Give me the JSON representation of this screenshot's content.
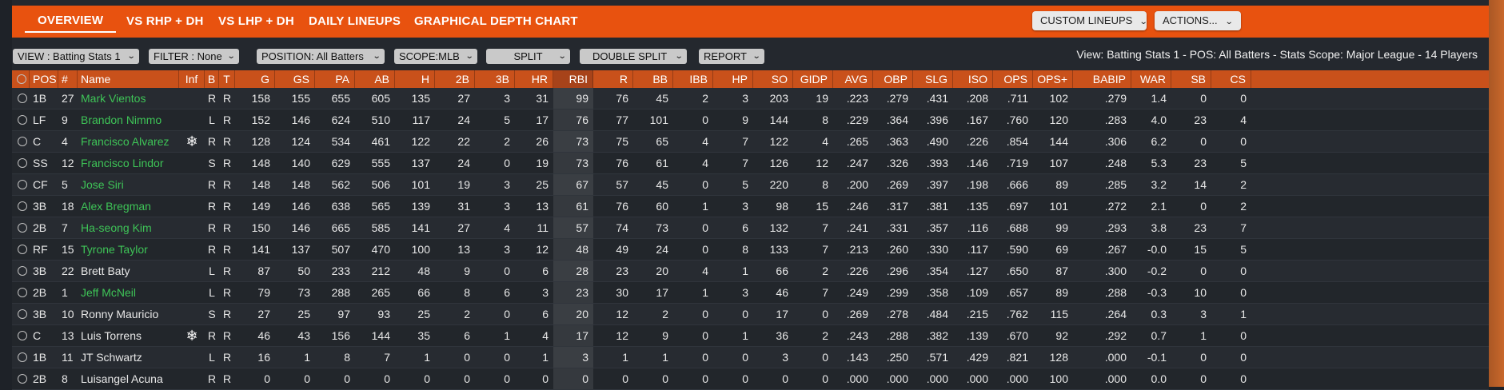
{
  "tabs": [
    {
      "label": "OVERVIEW",
      "active": true
    },
    {
      "label": "VS RHP + DH",
      "active": false
    },
    {
      "label": "VS LHP + DH",
      "active": false
    },
    {
      "label": "DAILY LINEUPS",
      "active": false
    },
    {
      "label": "GRAPHICAL DEPTH CHART",
      "active": false
    }
  ],
  "top_buttons": {
    "custom_lineups": "CUSTOM LINEUPS",
    "actions": "ACTIONS..."
  },
  "filters": {
    "view": "VIEW : Batting Stats 1",
    "filter": "FILTER : None",
    "position": "POSITION: All Batters",
    "scope": "SCOPE:MLB",
    "split": "SPLIT",
    "double_split": "DOUBLE SPLIT",
    "report": "REPORT"
  },
  "summary": "View: Batting Stats 1 - POS: All Batters - Stats Scope: Major League - 14 Players",
  "columns": [
    "POS",
    "#",
    "Name",
    "Inf",
    "B",
    "T",
    "G",
    "GS",
    "PA",
    "AB",
    "H",
    "2B",
    "3B",
    "HR",
    "RBI",
    "R",
    "BB",
    "IBB",
    "HP",
    "SO",
    "GIDP",
    "AVG",
    "OBP",
    "SLG",
    "ISO",
    "OPS",
    "OPS+",
    "BABIP",
    "WAR",
    "SB",
    "CS"
  ],
  "colors": {
    "accent": "#e8520f",
    "header": "#c9511b",
    "green_name": "#3ec457"
  },
  "rows": [
    {
      "pos": "1B",
      "num": "27",
      "name": "Mark Vientos",
      "green": true,
      "inf": "",
      "b": "R",
      "t": "R",
      "stats": [
        "158",
        "155",
        "655",
        "605",
        "135",
        "27",
        "3",
        "31",
        "99",
        "76",
        "45",
        "2",
        "3",
        "203",
        "19",
        ".223",
        ".279",
        ".431",
        ".208",
        ".711",
        "102",
        ".279",
        "1.4",
        "0",
        "0"
      ]
    },
    {
      "pos": "LF",
      "num": "9",
      "name": "Brandon Nimmo",
      "green": true,
      "inf": "",
      "b": "L",
      "t": "R",
      "stats": [
        "152",
        "146",
        "624",
        "510",
        "117",
        "24",
        "5",
        "17",
        "76",
        "77",
        "101",
        "0",
        "9",
        "144",
        "8",
        ".229",
        ".364",
        ".396",
        ".167",
        ".760",
        "120",
        ".283",
        "4.0",
        "23",
        "4"
      ]
    },
    {
      "pos": "C",
      "num": "4",
      "name": "Francisco Alvarez",
      "green": true,
      "inf": "snowflake",
      "b": "R",
      "t": "R",
      "stats": [
        "128",
        "124",
        "534",
        "461",
        "122",
        "22",
        "2",
        "26",
        "73",
        "75",
        "65",
        "4",
        "7",
        "122",
        "4",
        ".265",
        ".363",
        ".490",
        ".226",
        ".854",
        "144",
        ".306",
        "6.2",
        "0",
        "0"
      ]
    },
    {
      "pos": "SS",
      "num": "12",
      "name": "Francisco Lindor",
      "green": true,
      "inf": "",
      "b": "S",
      "t": "R",
      "stats": [
        "148",
        "140",
        "629",
        "555",
        "137",
        "24",
        "0",
        "19",
        "73",
        "76",
        "61",
        "4",
        "7",
        "126",
        "12",
        ".247",
        ".326",
        ".393",
        ".146",
        ".719",
        "107",
        ".248",
        "5.3",
        "23",
        "5"
      ]
    },
    {
      "pos": "CF",
      "num": "5",
      "name": "Jose Siri",
      "green": true,
      "inf": "",
      "b": "R",
      "t": "R",
      "stats": [
        "148",
        "148",
        "562",
        "506",
        "101",
        "19",
        "3",
        "25",
        "67",
        "57",
        "45",
        "0",
        "5",
        "220",
        "8",
        ".200",
        ".269",
        ".397",
        ".198",
        ".666",
        "89",
        ".285",
        "3.2",
        "14",
        "2"
      ]
    },
    {
      "pos": "3B",
      "num": "18",
      "name": "Alex Bregman",
      "green": true,
      "inf": "",
      "b": "R",
      "t": "R",
      "stats": [
        "149",
        "146",
        "638",
        "565",
        "139",
        "31",
        "3",
        "13",
        "61",
        "76",
        "60",
        "1",
        "3",
        "98",
        "15",
        ".246",
        ".317",
        ".381",
        ".135",
        ".697",
        "101",
        ".272",
        "2.1",
        "0",
        "2"
      ]
    },
    {
      "pos": "2B",
      "num": "7",
      "name": "Ha-seong Kim",
      "green": true,
      "inf": "",
      "b": "R",
      "t": "R",
      "stats": [
        "150",
        "146",
        "665",
        "585",
        "141",
        "27",
        "4",
        "11",
        "57",
        "74",
        "73",
        "0",
        "6",
        "132",
        "7",
        ".241",
        ".331",
        ".357",
        ".116",
        ".688",
        "99",
        ".293",
        "3.8",
        "23",
        "7"
      ]
    },
    {
      "pos": "RF",
      "num": "15",
      "name": "Tyrone Taylor",
      "green": true,
      "inf": "",
      "b": "R",
      "t": "R",
      "stats": [
        "141",
        "137",
        "507",
        "470",
        "100",
        "13",
        "3",
        "12",
        "48",
        "49",
        "24",
        "0",
        "8",
        "133",
        "7",
        ".213",
        ".260",
        ".330",
        ".117",
        ".590",
        "69",
        ".267",
        "-0.0",
        "15",
        "5"
      ]
    },
    {
      "pos": "3B",
      "num": "22",
      "name": "Brett Baty",
      "green": false,
      "inf": "",
      "b": "L",
      "t": "R",
      "stats": [
        "87",
        "50",
        "233",
        "212",
        "48",
        "9",
        "0",
        "6",
        "28",
        "23",
        "20",
        "4",
        "1",
        "66",
        "2",
        ".226",
        ".296",
        ".354",
        ".127",
        ".650",
        "87",
        ".300",
        "-0.2",
        "0",
        "0"
      ]
    },
    {
      "pos": "2B",
      "num": "1",
      "name": "Jeff McNeil",
      "green": true,
      "inf": "",
      "b": "L",
      "t": "R",
      "stats": [
        "79",
        "73",
        "288",
        "265",
        "66",
        "8",
        "6",
        "3",
        "23",
        "30",
        "17",
        "1",
        "3",
        "46",
        "7",
        ".249",
        ".299",
        ".358",
        ".109",
        ".657",
        "89",
        ".288",
        "-0.3",
        "10",
        "0"
      ]
    },
    {
      "pos": "3B",
      "num": "10",
      "name": "Ronny Mauricio",
      "green": false,
      "inf": "",
      "b": "S",
      "t": "R",
      "stats": [
        "27",
        "25",
        "97",
        "93",
        "25",
        "2",
        "0",
        "6",
        "20",
        "12",
        "2",
        "0",
        "0",
        "17",
        "0",
        ".269",
        ".278",
        ".484",
        ".215",
        ".762",
        "115",
        ".264",
        "0.3",
        "3",
        "1"
      ]
    },
    {
      "pos": "C",
      "num": "13",
      "name": "Luis Torrens",
      "green": false,
      "inf": "snowflake",
      "b": "R",
      "t": "R",
      "stats": [
        "46",
        "43",
        "156",
        "144",
        "35",
        "6",
        "1",
        "4",
        "17",
        "12",
        "9",
        "0",
        "1",
        "36",
        "2",
        ".243",
        ".288",
        ".382",
        ".139",
        ".670",
        "92",
        ".292",
        "0.7",
        "1",
        "0"
      ]
    },
    {
      "pos": "1B",
      "num": "11",
      "name": "JT Schwartz",
      "green": false,
      "inf": "",
      "b": "L",
      "t": "R",
      "stats": [
        "16",
        "1",
        "8",
        "7",
        "1",
        "0",
        "0",
        "1",
        "3",
        "1",
        "1",
        "0",
        "0",
        "3",
        "0",
        ".143",
        ".250",
        ".571",
        ".429",
        ".821",
        "128",
        ".000",
        "-0.1",
        "0",
        "0"
      ]
    },
    {
      "pos": "2B",
      "num": "8",
      "name": "Luisangel Acuna",
      "green": false,
      "inf": "",
      "b": "R",
      "t": "R",
      "stats": [
        "0",
        "0",
        "0",
        "0",
        "0",
        "0",
        "0",
        "0",
        "0",
        "0",
        "0",
        "0",
        "0",
        "0",
        "0",
        ".000",
        ".000",
        ".000",
        ".000",
        ".000",
        "100",
        ".000",
        "0.0",
        "0",
        "0"
      ]
    }
  ]
}
